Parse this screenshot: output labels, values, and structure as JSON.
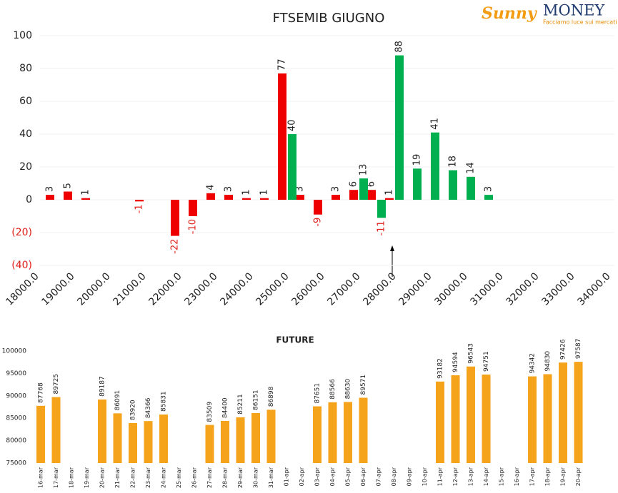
{
  "logo": {
    "brand": "Sunny",
    "name": "MONEY",
    "tagline": "Facciamo luce sui mercati"
  },
  "chart_data": [
    {
      "type": "bar",
      "title": "FTSEMIB GIUGNO",
      "categories": [
        "18000.0",
        null,
        "19000.0",
        null,
        "20000.0",
        null,
        "21000.0",
        null,
        "22000.0",
        null,
        "23000.0",
        null,
        "24000.0",
        null,
        "25000.0",
        null,
        "26000.0",
        null,
        "27000.0",
        null,
        "28000.0",
        null,
        "29000.0",
        null,
        "30000.0",
        null,
        "31000.0",
        null,
        "32000.0",
        null,
        "33000.0",
        null,
        "34000.0"
      ],
      "series": [
        {
          "color": "#ee0000",
          "values": [
            null,
            3,
            5,
            1,
            null,
            null,
            -1,
            null,
            -22,
            -10,
            4,
            3,
            1,
            1,
            77,
            3,
            -9,
            3,
            6,
            6,
            1,
            null,
            null,
            null,
            null,
            null,
            null,
            null,
            null,
            null,
            null,
            null,
            null
          ]
        },
        {
          "color": "#00b050",
          "values": [
            null,
            null,
            null,
            null,
            null,
            null,
            null,
            null,
            null,
            null,
            null,
            null,
            null,
            null,
            40,
            null,
            null,
            null,
            13,
            -11,
            88,
            19,
            41,
            18,
            14,
            3,
            null,
            null,
            null,
            null,
            null,
            null,
            null
          ]
        }
      ],
      "ylim": [
        -40,
        100
      ],
      "yticks": [
        {
          "value": -40,
          "label": "(40)"
        },
        {
          "value": -20,
          "label": "(20)"
        },
        0,
        20,
        40,
        60,
        80,
        100
      ],
      "grid": true,
      "negative_color": "#e0201b"
    },
    {
      "type": "bar",
      "title": "FUTURE",
      "categories": [
        "16-mar",
        "17-mar",
        "18-mar",
        "19-mar",
        "20-mar",
        "21-mar",
        "22-mar",
        "23-mar",
        "24-mar",
        "25-mar",
        "26-mar",
        "27-mar",
        "28-mar",
        "29-mar",
        "30-mar",
        "31-mar",
        "01-apr",
        "02-apr",
        "03-apr",
        "04-apr",
        "05-apr",
        "06-apr",
        "07-apr",
        "08-apr",
        "09-apr",
        "10-apr",
        "11-apr",
        "12-apr",
        "13-apr",
        "14-apr",
        "15-apr",
        "16-apr",
        "17-apr",
        "18-apr",
        "19-apr",
        "20-apr"
      ],
      "values": [
        87768,
        89725,
        null,
        null,
        89187,
        86091,
        83920,
        84366,
        85831,
        null,
        null,
        83509,
        84400,
        85211,
        86151,
        86898,
        null,
        null,
        87651,
        88566,
        88630,
        89571,
        null,
        null,
        null,
        null,
        93182,
        94594,
        96543,
        94751,
        null,
        null,
        94342,
        94830,
        97426,
        97587
      ],
      "color": "#f5a31a",
      "ylim": [
        75000,
        100000
      ],
      "yticks": [
        75000,
        80000,
        85000,
        90000,
        95000,
        100000
      ],
      "grid": false
    }
  ]
}
